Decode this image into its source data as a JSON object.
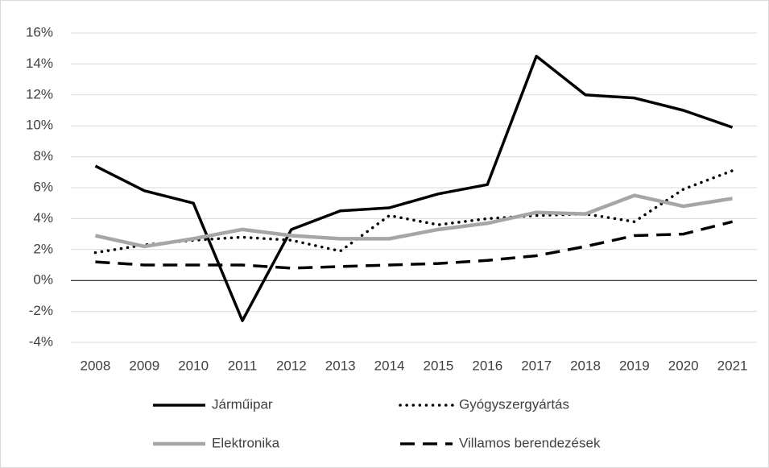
{
  "chart_data": {
    "type": "line",
    "categories": [
      "2008",
      "2009",
      "2010",
      "2011",
      "2012",
      "2013",
      "2014",
      "2015",
      "2016",
      "2017",
      "2018",
      "2019",
      "2020",
      "2021"
    ],
    "series": [
      {
        "name": "Járműipar",
        "color": "#000000",
        "dash": "solid",
        "values": [
          7.4,
          5.8,
          5.0,
          -2.6,
          3.3,
          4.5,
          4.7,
          5.6,
          6.2,
          14.5,
          12.0,
          11.8,
          11.0,
          9.9
        ]
      },
      {
        "name": "Gyógyszergyártás",
        "color": "#000000",
        "dash": "dotted",
        "values": [
          1.8,
          2.3,
          2.6,
          2.8,
          2.6,
          1.9,
          4.2,
          3.6,
          4.0,
          4.2,
          4.3,
          3.8,
          5.9,
          7.1
        ]
      },
      {
        "name": "Elektronika",
        "color": "#a6a6a6",
        "dash": "solid",
        "values": [
          2.9,
          2.2,
          2.7,
          3.3,
          2.9,
          2.7,
          2.7,
          3.3,
          3.7,
          4.4,
          4.3,
          5.5,
          4.8,
          5.3
        ]
      },
      {
        "name": "Villamos berendezések",
        "color": "#000000",
        "dash": "dashed",
        "values": [
          1.2,
          1.0,
          1.0,
          1.0,
          0.8,
          0.9,
          1.0,
          1.1,
          1.3,
          1.6,
          2.2,
          2.9,
          3.0,
          3.8
        ]
      }
    ],
    "ylim": [
      -4,
      16
    ],
    "yticks": [
      {
        "value": -4,
        "label": "-4%"
      },
      {
        "value": -2,
        "label": "-2%"
      },
      {
        "value": 0,
        "label": "0%"
      },
      {
        "value": 2,
        "label": "2%"
      },
      {
        "value": 4,
        "label": "4%"
      },
      {
        "value": 6,
        "label": "6%"
      },
      {
        "value": 8,
        "label": "8%"
      },
      {
        "value": 10,
        "label": "10%"
      },
      {
        "value": 12,
        "label": "12%"
      },
      {
        "value": 14,
        "label": "14%"
      },
      {
        "value": 16,
        "label": "16%"
      }
    ],
    "grid": true,
    "legend": "bottom"
  }
}
